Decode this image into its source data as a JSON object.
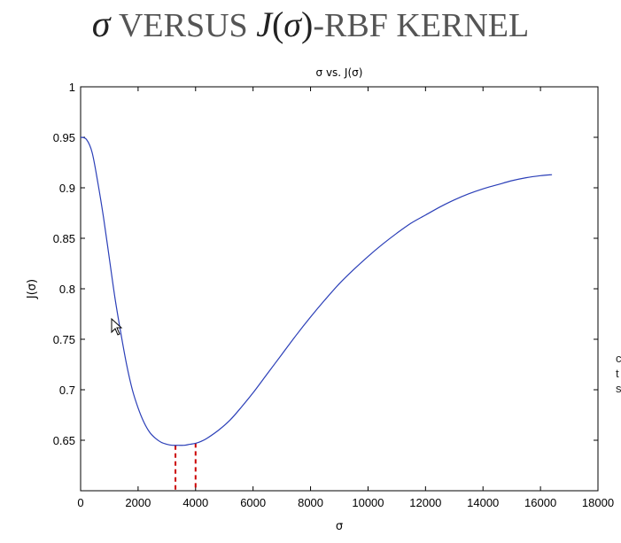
{
  "slide": {
    "title_symbol": "σ",
    "title_word": " VERSUS ",
    "title_fn": "J",
    "title_open": "(",
    "title_arg": "σ",
    "title_close": ")",
    "title_suffix": "-RBF KERNEL"
  },
  "edge_fragments": [
    "c",
    "t",
    "s"
  ],
  "chart_data": {
    "type": "line",
    "title": "σ vs. J(σ)",
    "xlabel": "σ",
    "ylabel": "J(σ)",
    "xlim": [
      0,
      18000
    ],
    "ylim": [
      0.6,
      1.0
    ],
    "xticks": [
      "0",
      "2000",
      "4000",
      "6000",
      "8000",
      "10000",
      "12000",
      "14000",
      "16000",
      "18000"
    ],
    "yticks": [
      "0.65",
      "0.7",
      "0.75",
      "0.8",
      "0.85",
      "0.9",
      "0.95",
      "1"
    ],
    "series": [
      {
        "color": "#2b3fb8",
        "x": [
          0,
          200,
          400,
          600,
          800,
          1000,
          1200,
          1400,
          1600,
          1800,
          2000,
          2200,
          2400,
          2600,
          2800,
          3000,
          3200,
          3400,
          3600,
          3800,
          4000,
          4200,
          4400,
          4800,
          5200,
          5600,
          6000,
          6500,
          7000,
          7500,
          8000,
          8500,
          9000,
          9500,
          10000,
          10500,
          11000,
          11500,
          12000,
          12500,
          13000,
          13500,
          14000,
          14500,
          15000,
          15500,
          16000,
          16400
        ],
        "y": [
          0.95,
          0.948,
          0.935,
          0.905,
          0.87,
          0.83,
          0.79,
          0.756,
          0.725,
          0.7,
          0.682,
          0.668,
          0.658,
          0.652,
          0.648,
          0.646,
          0.645,
          0.645,
          0.645,
          0.646,
          0.647,
          0.649,
          0.652,
          0.66,
          0.67,
          0.683,
          0.697,
          0.716,
          0.735,
          0.754,
          0.772,
          0.789,
          0.805,
          0.819,
          0.832,
          0.844,
          0.855,
          0.865,
          0.873,
          0.881,
          0.888,
          0.894,
          0.899,
          0.903,
          0.907,
          0.91,
          0.912,
          0.913
        ]
      }
    ],
    "markers": [
      {
        "x": 3300,
        "y": 0.645,
        "color": "#cc0000"
      },
      {
        "x": 4000,
        "y": 0.647,
        "color": "#cc0000"
      }
    ],
    "grid": false
  }
}
